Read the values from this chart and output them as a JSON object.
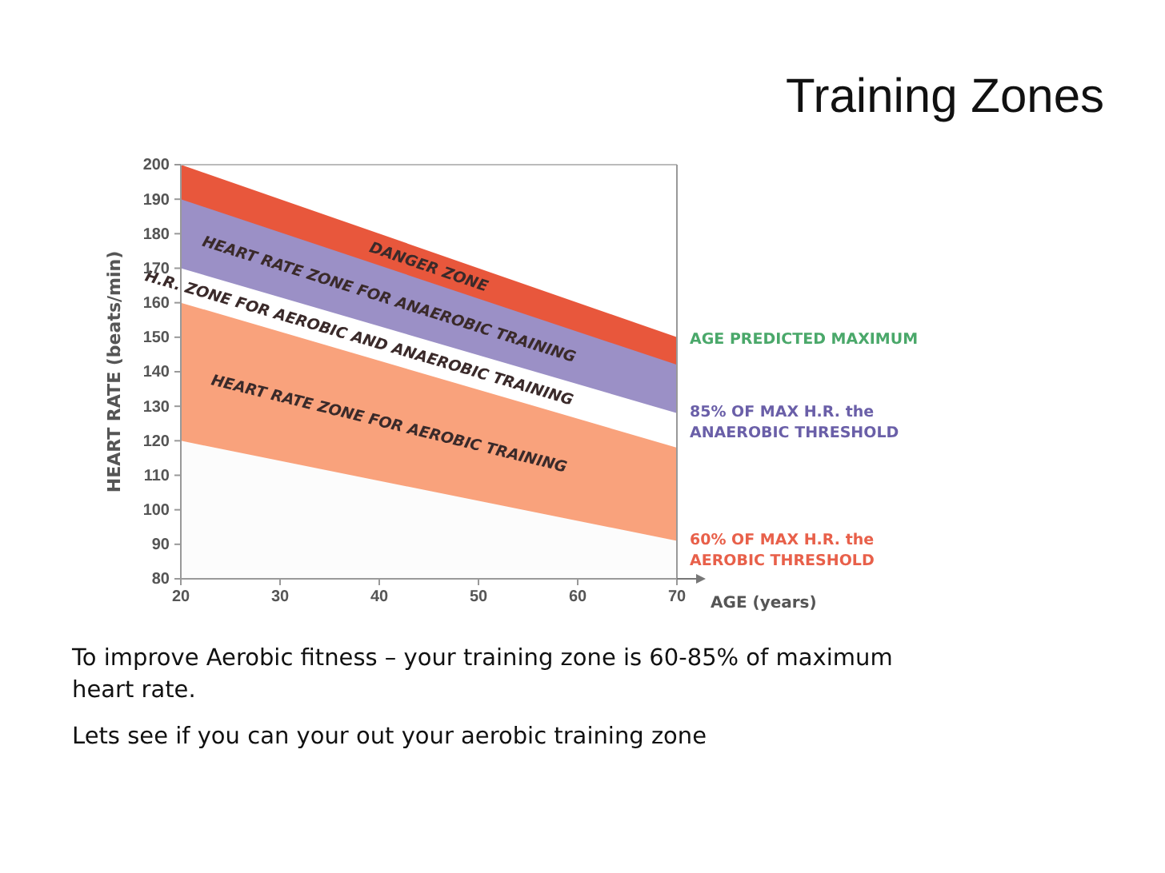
{
  "chart_data": {
    "type": "area",
    "title": "Training Zones",
    "xlabel": "AGE (years)",
    "ylabel": "HEART RATE (beats/min)",
    "x": [
      20,
      70
    ],
    "xlim": [
      20,
      70
    ],
    "xticks": [
      20,
      30,
      40,
      50,
      60,
      70
    ],
    "ylim": [
      80,
      200
    ],
    "yticks": [
      80,
      90,
      100,
      110,
      120,
      130,
      140,
      150,
      160,
      170,
      180,
      190,
      200
    ],
    "grid": false,
    "legend": false,
    "series": [
      {
        "name": "DANGER ZONE",
        "color": "#e8573c",
        "values": [
          200,
          150
        ]
      },
      {
        "name": "HEART RATE ZONE FOR ANAEROBIC TRAINING",
        "color": "#9b90c6",
        "values": [
          190,
          142
        ]
      },
      {
        "name": "H.R. ZONE FOR AEROBIC AND ANAEROBIC TRAINING",
        "color": "#ffffff",
        "values": [
          170,
          128
        ]
      },
      {
        "name": "HEART RATE ZONE FOR AEROBIC TRAINING",
        "color": "#f9a27c",
        "values": [
          160,
          118
        ]
      },
      {
        "color": "#fcfcfc",
        "values": [
          120,
          91
        ]
      }
    ],
    "annotations": [
      "AGE PREDICTED MAXIMUM",
      "85% OF MAX H.R. the\nANAEROBIC THRESHOLD",
      "60% OF MAX H.R. the\nAEROBIC THRESHOLD",
      "To improve Aerobic fitness – your training zone is 60-85% of maximum heart rate.",
      "Lets see if you can your out your aerobic training zone"
    ]
  }
}
